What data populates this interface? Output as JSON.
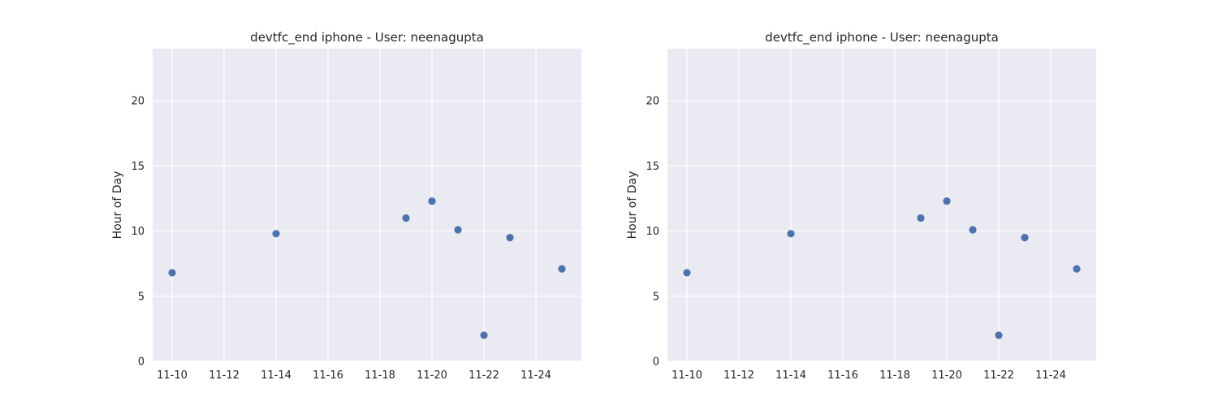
{
  "chart_data": [
    {
      "type": "scatter",
      "title": "devtfc_end iphone - User: neenagupta",
      "xlabel": "",
      "ylabel": "Hour of Day",
      "x": [
        "11-10",
        "11-14",
        "11-19",
        "11-20",
        "11-21",
        "11-22",
        "11-23",
        "11-25"
      ],
      "y": [
        6.8,
        9.8,
        11.0,
        12.3,
        10.1,
        2.0,
        9.5,
        7.1
      ],
      "xticks": [
        "11-10",
        "11-12",
        "11-14",
        "11-16",
        "11-18",
        "11-20",
        "11-22",
        "11-24"
      ],
      "yticks": [
        0,
        5,
        10,
        15,
        20
      ],
      "xlim": [
        "11-09.25",
        "11-25.75"
      ],
      "ylim": [
        0,
        24
      ],
      "grid": true,
      "point_color": "#4c72b0",
      "background_color": "#eaeaf2",
      "grid_color": "#ffffff"
    },
    {
      "type": "scatter",
      "title": "devtfc_end iphone - User: neenagupta",
      "xlabel": "",
      "ylabel": "Hour of Day",
      "x": [
        "11-10",
        "11-14",
        "11-19",
        "11-20",
        "11-21",
        "11-22",
        "11-23",
        "11-25"
      ],
      "y": [
        6.8,
        9.8,
        11.0,
        12.3,
        10.1,
        2.0,
        9.5,
        7.1
      ],
      "xticks": [
        "11-10",
        "11-12",
        "11-14",
        "11-16",
        "11-18",
        "11-20",
        "11-22",
        "11-24"
      ],
      "yticks": [
        0,
        5,
        10,
        15,
        20
      ],
      "xlim": [
        "11-09.25",
        "11-25.75"
      ],
      "ylim": [
        0,
        24
      ],
      "grid": true,
      "point_color": "#4c72b0",
      "background_color": "#eaeaf2",
      "grid_color": "#ffffff"
    }
  ]
}
